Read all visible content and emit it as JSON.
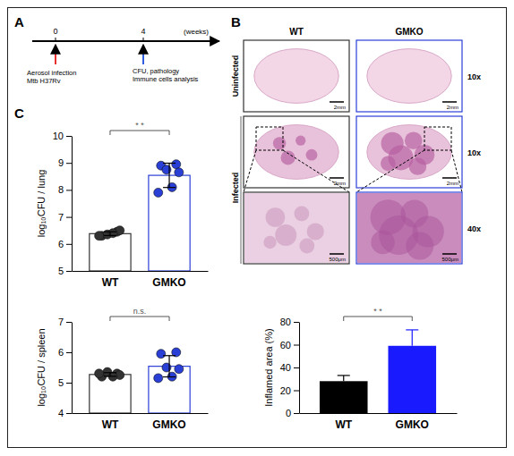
{
  "panel_labels": [
    "A",
    "B",
    "C"
  ],
  "timeline": {
    "ticks": [
      0,
      4
    ],
    "unit": "(weeks)",
    "events": [
      {
        "at": 0,
        "color": "#e8312f",
        "lines": [
          "Aerosol infection",
          "Mtb H37Rv"
        ]
      },
      {
        "at": 4,
        "color": "#2f5fe0",
        "lines": [
          "CFU, pathology",
          "Immune cells analysis"
        ]
      }
    ]
  },
  "histology": {
    "columns": [
      "WT",
      "GMKO"
    ],
    "rows": [
      "Uninfected",
      "Infected"
    ],
    "magnifications": [
      "10x",
      "10x",
      "40x"
    ],
    "scale_bars": [
      [
        "2mm",
        "2mm"
      ],
      [
        "2mm",
        "2mm"
      ],
      [
        "500μm",
        "500μm"
      ]
    ]
  },
  "chart_data": [
    {
      "type": "bar",
      "categories": [
        "WT",
        "GMKO"
      ],
      "values": [
        6.38,
        8.54
      ],
      "errors": [
        0.07,
        0.45
      ],
      "points": [
        [
          6.3,
          6.45,
          6.35,
          6.5,
          6.4,
          6.3
        ],
        [
          8.9,
          8.95,
          8.75,
          8.65,
          8.1,
          7.9
        ]
      ],
      "colors": [
        "#333333",
        "#2a3fd6"
      ],
      "marker": "circle",
      "ylabel": "log₁₀CFU / lung",
      "ylim": [
        5,
        10
      ],
      "yticks": [
        5,
        6,
        7,
        8,
        9,
        10
      ],
      "annotation": "* *"
    },
    {
      "type": "bar",
      "categories": [
        "WT",
        "GMKO"
      ],
      "values": [
        5.27,
        5.54
      ],
      "errors": [
        0.06,
        0.35
      ],
      "points": [
        [
          5.2,
          5.3,
          5.35,
          5.25,
          5.2,
          5.3
        ],
        [
          5.95,
          6.0,
          5.5,
          5.45,
          5.2,
          5.15
        ]
      ],
      "colors": [
        "#333333",
        "#2a3fd6"
      ],
      "marker": "circle",
      "ylabel": "log₁₀CFU / spleen",
      "ylim": [
        4,
        7
      ],
      "yticks": [
        4,
        5,
        6,
        7
      ],
      "annotation": "n.s."
    },
    {
      "type": "bar",
      "categories": [
        "WT",
        "GMKO"
      ],
      "values": [
        28,
        59
      ],
      "errors": [
        5,
        14
      ],
      "colors": [
        "#000000",
        "#1a1aff"
      ],
      "ylabel": "Inflamed area (%)",
      "ylim": [
        0,
        80
      ],
      "yticks": [
        0,
        20,
        40,
        60,
        80
      ],
      "annotation": "* *"
    }
  ]
}
